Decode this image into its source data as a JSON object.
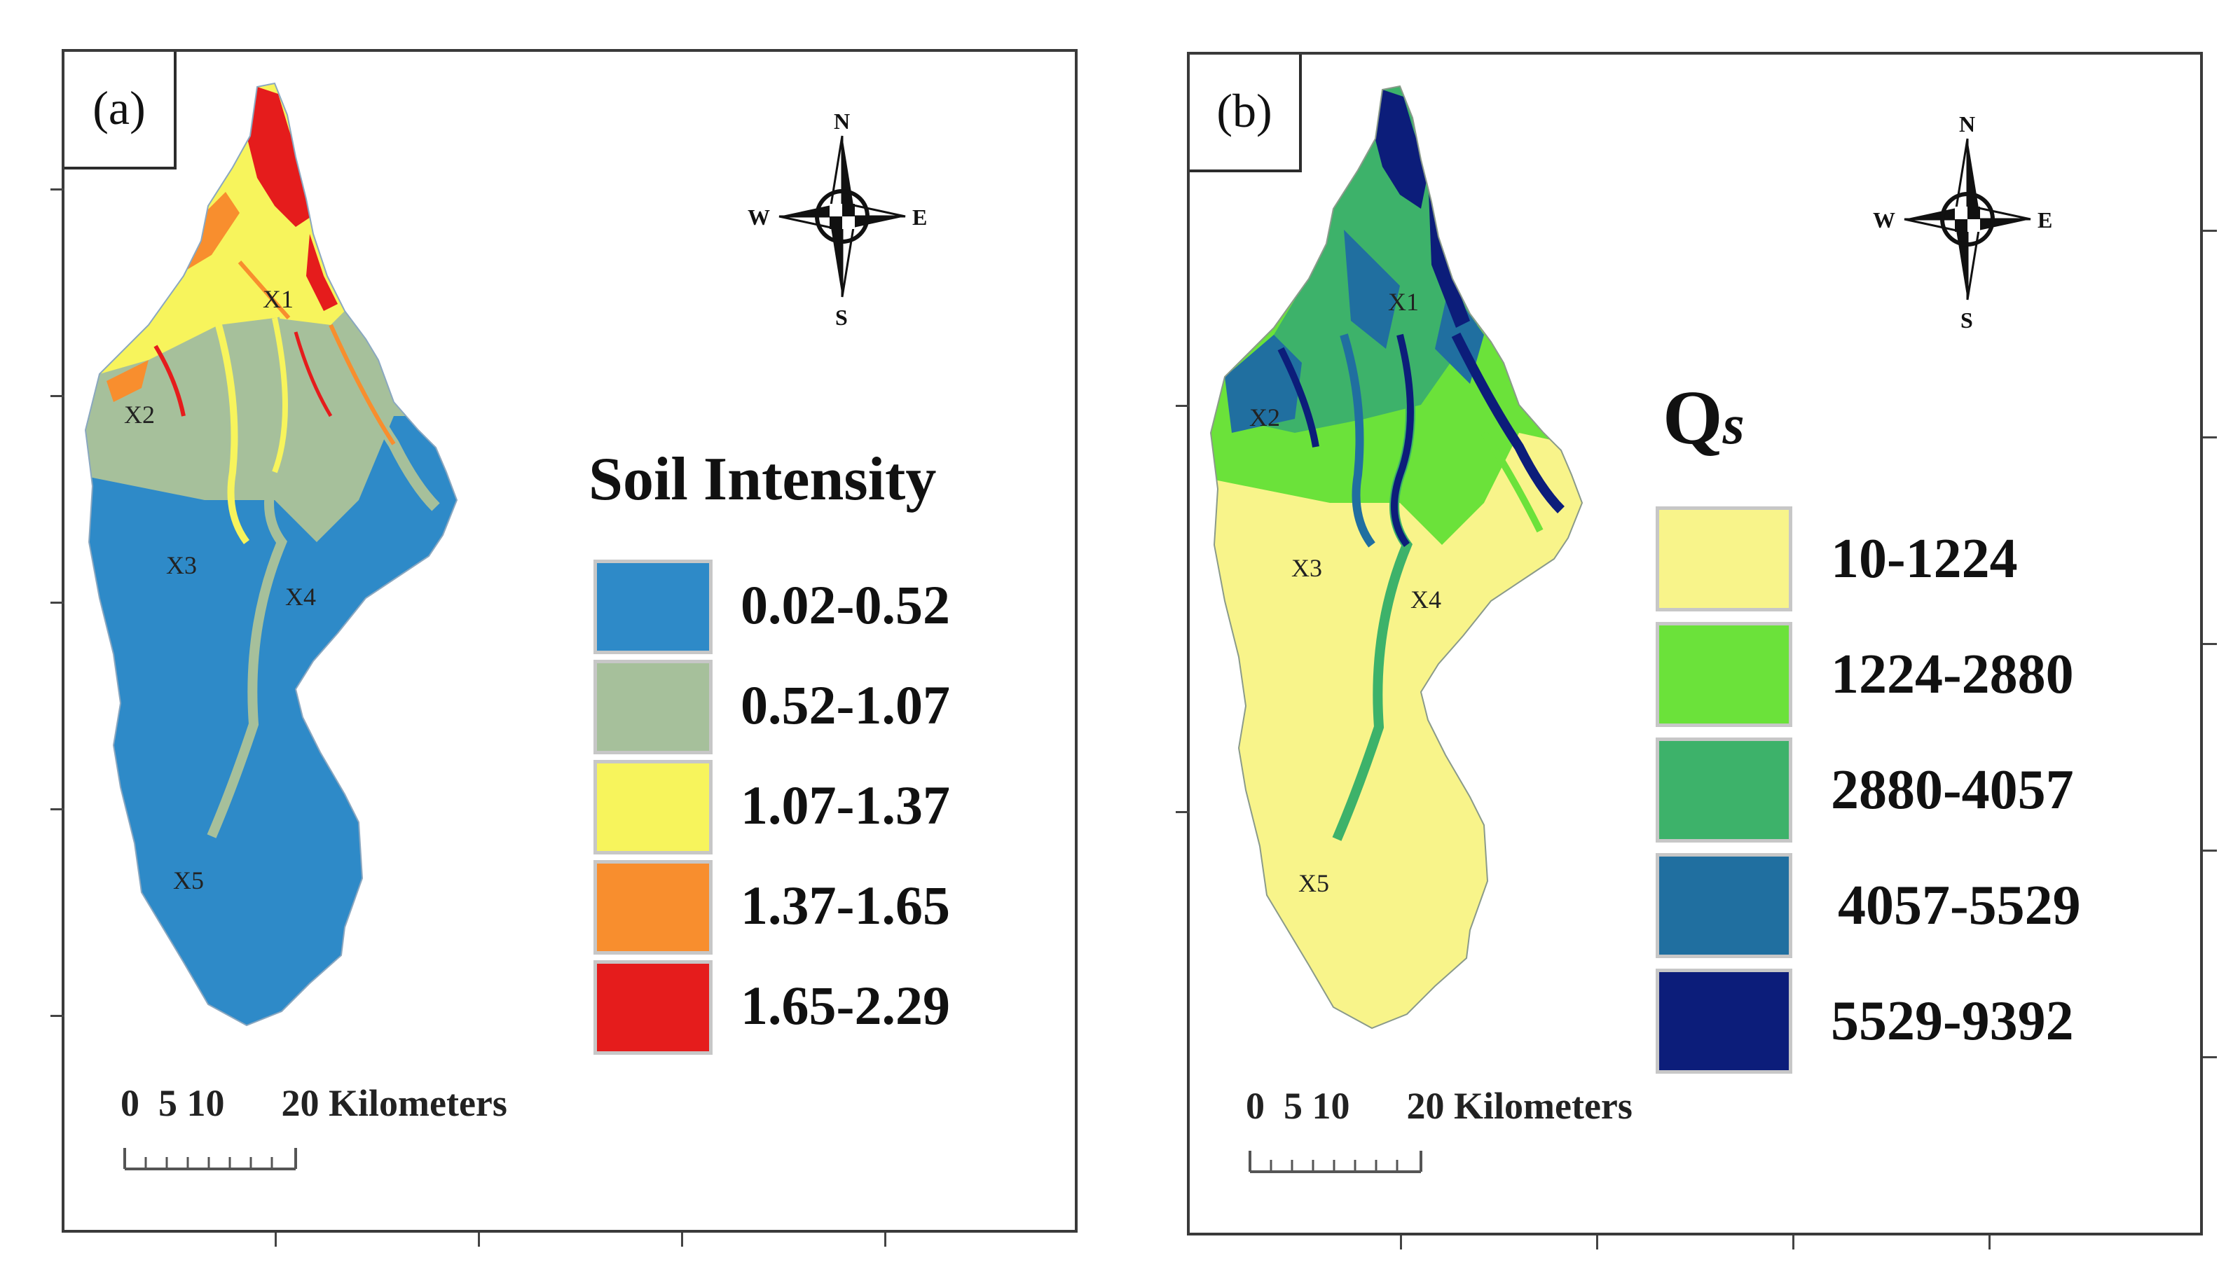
{
  "panels": [
    {
      "tag": "(a)",
      "legend_title": "Soil Intensity",
      "legend": [
        {
          "label": "0.02-0.52",
          "color": "#2e8ac8"
        },
        {
          "label": "0.52-1.07",
          "color": "#a6c09b"
        },
        {
          "label": "1.07-1.37",
          "color": "#f7f45c"
        },
        {
          "label": "1.37-1.65",
          "color": "#f88e2e"
        },
        {
          "label": "1.65-2.29",
          "color": "#e51c1c"
        }
      ],
      "regions": [
        "X1",
        "X2",
        "X3",
        "X4",
        "X5"
      ],
      "scale_text": "0  5 10      20 Kilometers"
    },
    {
      "tag": "(b)",
      "legend_title": "Q",
      "legend_title_sub": "s",
      "legend": [
        {
          "label": "10-1224",
          "color": "#f8f48a"
        },
        {
          "label": "1224-2880",
          "color": "#6be23a"
        },
        {
          "label": "2880-4057",
          "color": "#3db26a"
        },
        {
          "label": "4057-5529",
          "color": "#206fa0"
        },
        {
          "label": "5529-9392",
          "color": "#0c1d7a"
        }
      ],
      "regions": [
        "X1",
        "X2",
        "X3",
        "X4",
        "X5"
      ],
      "scale_text": "0  5 10      20 Kilometers"
    }
  ],
  "compass": {
    "n": "N",
    "s": "S",
    "e": "E",
    "w": "W"
  }
}
